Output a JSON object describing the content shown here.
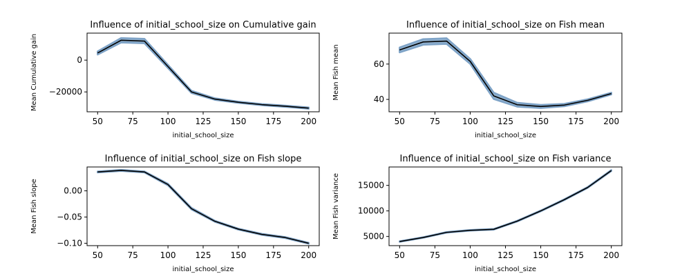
{
  "chart_data": [
    {
      "type": "line",
      "title": "Influence of initial_school_size on Cumulative gain",
      "xlabel": "initial_school_size",
      "ylabel": "Mean Cumulative gain",
      "x": [
        50,
        66.7,
        83.3,
        100,
        116.7,
        133.3,
        150,
        166.7,
        183.3,
        200
      ],
      "series": [
        {
          "values": [
            4500,
            12500,
            12000,
            -4000,
            -20000,
            -24500,
            -26500,
            -28000,
            -29000,
            -30200
          ],
          "band_half_width": [
            1000,
            1400,
            1400,
            1000,
            700,
            500,
            400,
            400,
            400,
            400
          ]
        }
      ],
      "xticks": [
        50,
        75,
        100,
        125,
        150,
        175,
        200
      ],
      "yticks": [
        0,
        -20000
      ],
      "ytick_labels": [
        "0",
        "−20000"
      ],
      "xlim": [
        42.5,
        207.5
      ],
      "ylim": [
        -32500,
        17000
      ],
      "line_color": "#000000",
      "band_color": "#7ea3c7"
    },
    {
      "type": "line",
      "title": "Influence of initial_school_size on Fish mean",
      "xlabel": "initial_school_size",
      "ylabel": "Mean Fish mean",
      "x": [
        50,
        66.7,
        83.3,
        100,
        116.7,
        133.3,
        150,
        166.7,
        183.3,
        200
      ],
      "series": [
        {
          "values": [
            68,
            72.5,
            73,
            61.5,
            42,
            37,
            36,
            36.8,
            39.5,
            43.3
          ],
          "band_half_width": [
            1.4,
            1.6,
            1.6,
            1.4,
            1.8,
            1.1,
            0.9,
            0.7,
            0.6,
            0.5
          ]
        }
      ],
      "xticks": [
        50,
        75,
        100,
        125,
        150,
        175,
        200
      ],
      "yticks": [
        40,
        60
      ],
      "ytick_labels": [
        "40",
        "60"
      ],
      "xlim": [
        42.5,
        207.5
      ],
      "ylim": [
        33,
        77.5
      ],
      "line_color": "#000000",
      "band_color": "#7ea3c7"
    },
    {
      "type": "line",
      "title": "Influence of initial_school_size on Fish slope",
      "xlabel": "initial_school_size",
      "ylabel": "Mean Fish slope",
      "x": [
        50,
        66.7,
        83.3,
        100,
        116.7,
        133.3,
        150,
        166.7,
        183.3,
        200
      ],
      "series": [
        {
          "values": [
            0.036,
            0.039,
            0.036,
            0.012,
            -0.034,
            -0.058,
            -0.073,
            -0.083,
            -0.089,
            -0.1
          ],
          "band_half_width": [
            0.001,
            0.001,
            0.001,
            0.0015,
            0.0015,
            0.001,
            0.001,
            0.001,
            0.001,
            0.001
          ]
        }
      ],
      "xticks": [
        50,
        75,
        100,
        125,
        150,
        175,
        200
      ],
      "yticks": [
        0.0,
        -0.05,
        -0.1
      ],
      "ytick_labels": [
        "0.00",
        "−0.05",
        "−0.10"
      ],
      "xlim": [
        42.5,
        207.5
      ],
      "ylim": [
        -0.1045,
        0.0455
      ],
      "line_color": "#000000",
      "band_color": "#7ea3c7"
    },
    {
      "type": "line",
      "title": "Influence of initial_school_size on Fish variance",
      "xlabel": "initial_school_size",
      "ylabel": "Mean Fish variance",
      "x": [
        50,
        66.7,
        83.3,
        100,
        116.7,
        133.3,
        150,
        166.7,
        183.3,
        200
      ],
      "series": [
        {
          "values": [
            4000,
            4800,
            5800,
            6200,
            6400,
            8000,
            10000,
            12200,
            14600,
            17900
          ],
          "band_half_width": [
            60,
            60,
            70,
            70,
            70,
            80,
            80,
            90,
            90,
            100
          ]
        }
      ],
      "xticks": [
        50,
        75,
        100,
        125,
        150,
        175,
        200
      ],
      "yticks": [
        5000,
        10000,
        15000
      ],
      "ytick_labels": [
        "5000",
        "10000",
        "15000"
      ],
      "xlim": [
        42.5,
        207.5
      ],
      "ylim": [
        3200,
        18600
      ],
      "line_color": "#000000",
      "band_color": "#7ea3c7"
    }
  ]
}
